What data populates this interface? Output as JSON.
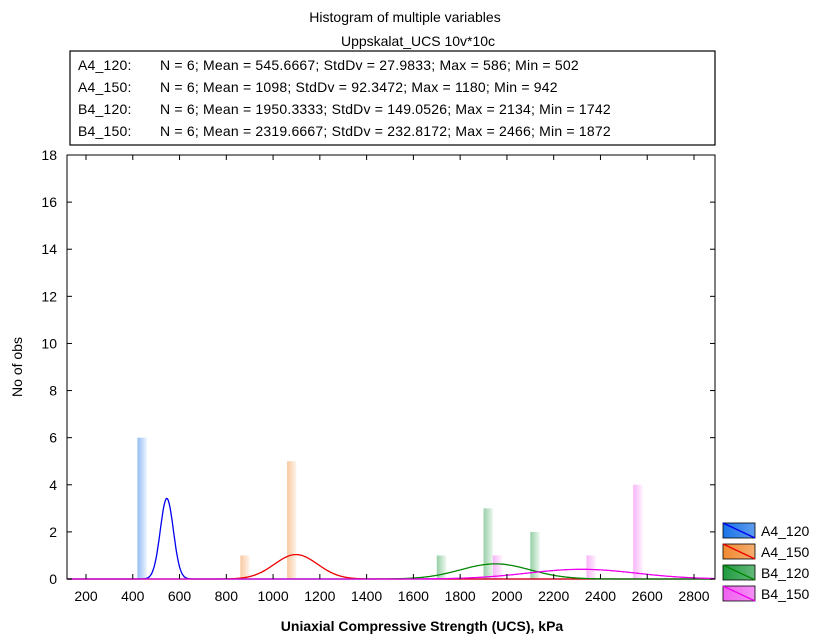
{
  "chart_data": {
    "type": "histogram",
    "title": "Histogram of multiple variables",
    "subtitle": "Uppskalat_UCS 10v*10c",
    "xlabel": "Uniaxial Compressive Strength (UCS), kPa",
    "ylabel": "No of obs",
    "xlim": [
      100,
      2900
    ],
    "ylim": [
      0,
      18
    ],
    "xticks": [
      200,
      400,
      600,
      800,
      1000,
      1200,
      1400,
      1600,
      1800,
      2000,
      2200,
      2400,
      2600,
      2800
    ],
    "yticks": [
      0,
      2,
      4,
      6,
      8,
      10,
      12,
      14,
      16,
      18
    ],
    "grid": false,
    "legend_position": "bottom-right outside",
    "stats": [
      {
        "label": "A4_120:",
        "text": "N = 6; Mean = 545.6667; StdDv = 27.9833; Max = 586; Min = 502"
      },
      {
        "label": "A4_150:",
        "text": "N = 6; Mean = 1098; StdDv = 92.3472; Max = 1180; Min = 942"
      },
      {
        "label": "B4_120:",
        "text": "N = 6; Mean = 1950.3333; StdDv = 149.0526; Max = 2134; Min = 1742"
      },
      {
        "label": "B4_150:",
        "text": "N = 6; Mean = 2319.6667; StdDv = 232.8172; Max = 2466; Min = 1872"
      }
    ],
    "series": [
      {
        "name": "A4_120",
        "color": "#0000ee",
        "fill": "#1a73e8",
        "mean": 545.6667,
        "std": 27.9833,
        "bars": [
          {
            "x": 440,
            "count": 6
          }
        ]
      },
      {
        "name": "A4_150",
        "color": "#ee0000",
        "fill": "#f08a30",
        "mean": 1098,
        "std": 92.3472,
        "bars": [
          {
            "x": 880,
            "count": 1
          },
          {
            "x": 1080,
            "count": 5
          }
        ]
      },
      {
        "name": "B4_120",
        "color": "#008800",
        "fill": "#1f9a40",
        "mean": 1950.3333,
        "std": 149.0526,
        "bars": [
          {
            "x": 1720,
            "count": 1
          },
          {
            "x": 1920,
            "count": 3
          },
          {
            "x": 2120,
            "count": 2
          }
        ]
      },
      {
        "name": "B4_150",
        "color": "#ee00ee",
        "fill": "#f060f0",
        "mean": 2319.6667,
        "std": 232.8172,
        "bars": [
          {
            "x": 1960,
            "count": 1
          },
          {
            "x": 2360,
            "count": 1
          },
          {
            "x": 2560,
            "count": 4
          }
        ]
      }
    ]
  }
}
